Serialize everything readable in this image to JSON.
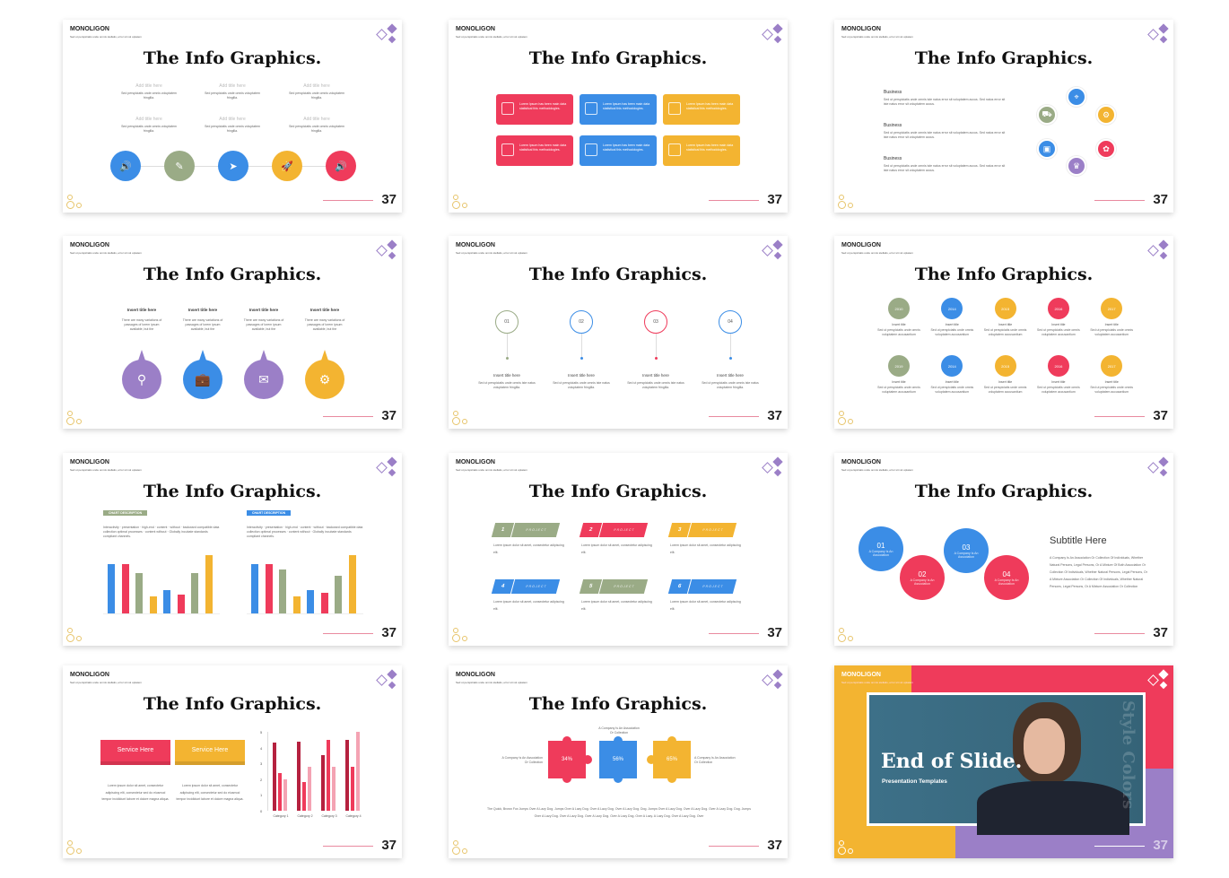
{
  "common": {
    "brand": "MONOLIGON",
    "tagline": "Sed ut perspiciatis unde omnis stellatis, error sit vol uptatem",
    "title": "The Info Graphics.",
    "page": "37"
  },
  "colors": {
    "blue": "#3b8de6",
    "red": "#ef3b5b",
    "yellow": "#f3b431",
    "green": "#9aab86",
    "purple": "#9b7fc7",
    "pink": "#e98a9f",
    "teal": "#3d7088"
  },
  "slides": [
    {
      "type": "timeline",
      "items": [
        {
          "title": "Add title here",
          "body": "Sed perspiciatis unde omnis voluptatem fringilla."
        },
        {
          "title": "Add title here",
          "body": "Sed perspiciatis unde omnis voluptatem fringilla."
        },
        {
          "title": "Add title here",
          "body": "Sed perspiciatis unde omnis voluptatem fringilla."
        },
        {
          "title": "Add title here",
          "body": "Sed perspiciatis unde omnis voluptatem fringilla."
        },
        {
          "title": "Add title here",
          "body": "Sed perspiciatis unde omnis voluptatem fringilla."
        },
        {
          "title": "Add title here",
          "body": "Sed perspiciatis unde omnis voluptatem fringilla."
        }
      ],
      "circles": [
        {
          "color": "blue",
          "icon": "speaker-icon",
          "glyph": "🔊"
        },
        {
          "color": "green",
          "icon": "note-icon",
          "glyph": "✎"
        },
        {
          "color": "blue",
          "icon": "paper-plane-icon",
          "glyph": "➤"
        },
        {
          "color": "yellow",
          "icon": "rocket-icon",
          "glyph": "🚀"
        },
        {
          "color": "red",
          "icon": "speaker-icon",
          "glyph": "🔊"
        }
      ]
    },
    {
      "type": "boxes",
      "boxes": [
        {
          "color": "red",
          "icon": "coins-icon",
          "text": "Lorem Ipsum has been main data statistical this methodologies."
        },
        {
          "color": "blue",
          "icon": "calendar-icon",
          "text": "Lorem Ipsum has been main data statistical this methodologies."
        },
        {
          "color": "yellow",
          "icon": "tag-icon",
          "text": "Lorem Ipsum has been main data statistical this methodologies."
        },
        {
          "color": "red",
          "icon": "coins-icon",
          "text": "Lorem Ipsum has been main data statistical this methodologies."
        },
        {
          "color": "blue",
          "icon": "calendar-icon",
          "text": "Lorem Ipsum has been main data statistical this methodologies."
        },
        {
          "color": "yellow",
          "icon": "tag-icon",
          "text": "Lorem Ipsum has been main data statistical this methodologies."
        }
      ]
    },
    {
      "type": "cycle",
      "items": [
        {
          "title": "Business",
          "body": "Sed ut perspiciatis unde omnis iste natus error sit voluptatem accus. Sed natus error sit iste natus error sit voluptatem accus."
        },
        {
          "title": "Business",
          "body": "Sed ut perspiciatis unde omnis iste natus error sit voluptatem accus. Sed natus error sit iste natus error sit voluptatem accus."
        },
        {
          "title": "Business",
          "body": "Sed ut perspiciatis unde omnis iste natus error sit voluptatem accus. Sed natus error sit iste natus error sit voluptatem accus."
        }
      ],
      "nodes": [
        {
          "color": "blue",
          "icon": "location-pin-icon",
          "glyph": "⌖"
        },
        {
          "color": "yellow",
          "icon": "gear-icon",
          "glyph": "⚙"
        },
        {
          "color": "red",
          "icon": "brain-icon",
          "glyph": "✿"
        },
        {
          "color": "purple",
          "icon": "trophy-icon",
          "glyph": "♛"
        },
        {
          "color": "blue",
          "icon": "image-icon",
          "glyph": "▣"
        },
        {
          "color": "green",
          "icon": "car-icon",
          "glyph": "⛟"
        }
      ]
    },
    {
      "type": "drops",
      "items": [
        {
          "title": "Insert title here",
          "body": "There are many variations of passages of lorem ipsum available, but the",
          "color": "purple",
          "icon": "search-icon",
          "glyph": "⚲"
        },
        {
          "title": "Insert title here",
          "body": "There are many variations of passages of lorem ipsum available, but the",
          "color": "blue",
          "icon": "briefcase-icon",
          "glyph": "💼"
        },
        {
          "title": "Insert title here",
          "body": "There are many variations of passages of lorem ipsum available, but the",
          "color": "purple",
          "icon": "envelope-icon",
          "glyph": "✉"
        },
        {
          "title": "Insert title here",
          "body": "There are many variations of passages of lorem ipsum available, but the",
          "color": "yellow",
          "icon": "gears-icon",
          "glyph": "⚙"
        }
      ]
    },
    {
      "type": "pins",
      "items": [
        {
          "num": "01",
          "color": "green",
          "title": "Insert title here",
          "body": "Sed ut perspiciatis unde omnis iste natus voluptatem fringilla."
        },
        {
          "num": "02",
          "color": "blue",
          "title": "Insert title here",
          "body": "Sed ut perspiciatis unde omnis iste natus voluptatem fringilla."
        },
        {
          "num": "03",
          "color": "red",
          "title": "Insert title here",
          "body": "Sed ut perspiciatis unde omnis iste natus voluptatem fringilla."
        },
        {
          "num": "04",
          "color": "blue",
          "title": "Insert title here",
          "body": "Sed ut perspiciatis unde omnis iste natus voluptatem fringilla."
        }
      ]
    },
    {
      "type": "years",
      "rows": [
        [
          {
            "year": "2010",
            "color": "green"
          },
          {
            "year": "2014",
            "color": "blue"
          },
          {
            "year": "2015",
            "color": "yellow"
          },
          {
            "year": "2016",
            "color": "red"
          },
          {
            "year": "2017",
            "color": "yellow"
          }
        ],
        [
          {
            "year": "2019",
            "color": "green"
          },
          {
            "year": "2014",
            "color": "blue"
          },
          {
            "year": "2015",
            "color": "yellow"
          },
          {
            "year": "2016",
            "color": "red"
          },
          {
            "year": "2017",
            "color": "yellow"
          }
        ]
      ],
      "item_title": "Insert title",
      "item_body": "Sed ut perspiciatis unde omnis voluptatem accusantium"
    },
    {
      "type": "barcharts",
      "charts": [
        {
          "label": "CHART DESCRIPTION",
          "label_color": "green",
          "body": "Interactivity · presentation · high-end · content · without · backward compatible data collection optimal processes · content without · Globally incubate standards compliant channels.",
          "values": [
            8.5,
            8.5,
            7,
            3,
            4,
            3.2,
            7,
            10
          ],
          "colors": [
            "blue",
            "red",
            "green",
            "yellow",
            "blue",
            "red",
            "green",
            "yellow"
          ]
        },
        {
          "label": "CHART DESCRIPTION",
          "label_color": "blue",
          "body": "Interactivity · presentation · high-end · content · without · backward compatible data collection optimal processes · content without · Globally incubate standards compliant channels.",
          "values": [
            8.5,
            8.5,
            7.5,
            3,
            4,
            3.5,
            6.5,
            10
          ],
          "colors": [
            "blue",
            "red",
            "green",
            "yellow",
            "blue",
            "red",
            "green",
            "yellow"
          ]
        }
      ]
    },
    {
      "type": "projects",
      "items": [
        {
          "num": "1",
          "label": "PROJECT",
          "color": "green",
          "body": "Lorem ipsum dolor sit amet, consectetur adipiscing elit."
        },
        {
          "num": "2",
          "label": "PROJECT",
          "color": "red",
          "body": "Lorem ipsum dolor sit amet, consectetur adipiscing elit."
        },
        {
          "num": "3",
          "label": "PROJECT",
          "color": "yellow",
          "body": "Lorem ipsum dolor sit amet, consectetur adipiscing elit."
        },
        {
          "num": "4",
          "label": "PROJECT",
          "color": "blue",
          "body": "Lorem ipsum dolor sit amet, consectetur adipiscing elit."
        },
        {
          "num": "5",
          "label": "PROJECT",
          "color": "green",
          "body": "Lorem ipsum dolor sit amet, consectetur adipiscing elit."
        },
        {
          "num": "6",
          "label": "PROJECT",
          "color": "blue",
          "body": "Lorem ipsum dolor sit amet, consectetur adipiscing elit."
        }
      ]
    },
    {
      "type": "bubbles",
      "items": [
        {
          "num": "01",
          "color": "blue",
          "text": "A Company Is An Association"
        },
        {
          "num": "02",
          "color": "red",
          "text": "A Company Is An Association"
        },
        {
          "num": "03",
          "color": "blue",
          "text": "A Company Is An Association"
        },
        {
          "num": "04",
          "color": "red",
          "text": "A Company Is An Association"
        }
      ],
      "subtitle": "Subtitle Here",
      "body": "A Company Is An Association Or Collection Of Individuals, Whether Natural Persons, Legal Persons, Or A Mixture Of Both Association Or Collection Of Individuals, Whether Natural Persons, Legal Persons, Or A Mixture Association Or Collection Of Individuals, Whether Natural Persons, Legal Persons, Or A Mixture Association Or Collection"
    },
    {
      "type": "services",
      "buttons": [
        {
          "label": "Service Here",
          "color": "red",
          "body": "Lorem ipsum dolor sit amet, consectetur adipiscing elit, consectetur sed do eiusmod tempor incididunt labore et dolore magna aliqua."
        },
        {
          "label": "Service Here",
          "color": "yellow",
          "body": "Lorem ipsum dolor sit amet, consectetur adipiscing elit, consectetur sed do eiusmod tempor incididunt labore et dolore magna aliqua."
        }
      ],
      "chart": {
        "yticks": [
          "0",
          "1",
          "2",
          "3",
          "4",
          "5"
        ],
        "ymax": 5,
        "categories": [
          "Category 1",
          "Category 2",
          "Category 3",
          "Category 4"
        ],
        "series": [
          {
            "values": [
              4.3,
              4.4,
              3.5,
              4.5
            ],
            "color": "#b5213f"
          },
          {
            "values": [
              2.4,
              1.8,
              4.5,
              2.8
            ],
            "color": "#ef3b5b"
          },
          {
            "values": [
              2,
              2.8,
              2.8,
              5
            ],
            "color": "#f4a3b3"
          }
        ]
      }
    },
    {
      "type": "puzzle",
      "pieces": [
        {
          "pct": "34%",
          "color": "red"
        },
        {
          "pct": "56%",
          "color": "blue"
        },
        {
          "pct": "65%",
          "color": "yellow"
        }
      ],
      "labels": [
        "A Company Is An Association Or Collection",
        "A Company Is An Association Or Collection",
        "A Company Is An Association Or Collection"
      ],
      "body": "The Quick, Brown Fox Jumps Over A Lazy Dog. Jumps Over A Lazy Dog. Over A Lazy Dog. Over A Lazy Dog. Dog. Jumps Over A Lazy Dog. Over A Lazy Dog. Over A Lazy Dog. Dog. Jumps Over A Lazy Dog. Over A Lazy Dog. Over A Lazy Dog. Over A Lazy Dog. Over A Lazy. A Lazy Dog. Over A Lazy Dog. Over"
    },
    {
      "type": "end",
      "title": "End of Slide.",
      "subtitle": "Presentation Templates",
      "vertical": "Style Colors"
    }
  ]
}
